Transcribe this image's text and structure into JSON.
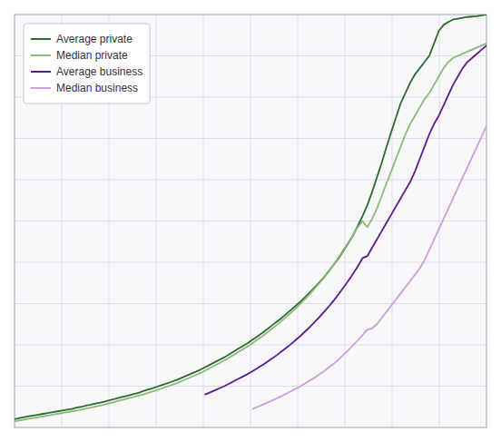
{
  "chart_data": {
    "type": "line",
    "x": [
      1,
      2,
      3,
      4,
      5,
      6,
      7,
      8,
      9,
      10,
      11,
      12,
      13,
      14,
      15,
      16,
      17,
      18,
      19,
      20,
      21,
      22,
      23,
      24,
      25,
      26,
      27,
      28,
      29,
      30,
      31,
      32,
      33,
      34,
      35,
      36,
      37,
      38,
      39,
      40,
      41,
      42,
      43,
      44,
      45,
      46,
      47,
      48,
      49,
      50,
      51,
      52,
      53,
      54,
      55,
      56,
      57,
      58,
      59,
      60,
      61,
      62,
      63,
      64,
      65,
      66,
      67,
      68,
      69,
      70,
      71,
      72,
      73,
      74,
      75,
      76,
      77,
      78,
      79,
      80,
      81,
      82,
      83,
      84,
      85,
      86,
      87,
      88,
      89,
      90,
      91,
      92,
      93,
      94,
      95,
      96,
      97,
      98,
      99,
      100
    ],
    "series": [
      {
        "name": "Average private",
        "color": "#2d6a2d",
        "values": [
          2.0,
          2.3,
          2.5,
          2.7,
          2.9,
          3.1,
          3.3,
          3.5,
          3.7,
          3.9,
          4.1,
          4.3,
          4.5,
          4.8,
          5.0,
          5.3,
          5.5,
          5.8,
          6.0,
          6.3,
          6.6,
          6.9,
          7.2,
          7.5,
          7.8,
          8.1,
          8.4,
          8.8,
          9.2,
          9.5,
          9.9,
          10.3,
          10.7,
          11.1,
          11.5,
          12.0,
          12.5,
          13.0,
          13.5,
          14.0,
          14.6,
          15.2,
          15.8,
          16.4,
          17.0,
          17.7,
          18.4,
          19.1,
          19.8,
          20.5,
          21.3,
          22.1,
          22.9,
          23.8,
          24.7,
          25.6,
          26.5,
          27.5,
          28.5,
          29.5,
          30.5,
          31.6,
          32.8,
          34.0,
          35.2,
          36.5,
          38.0,
          39.5,
          41.0,
          42.8,
          44.6,
          46.5,
          48.8,
          51.2,
          53.8,
          57.0,
          60.5,
          64.0,
          67.8,
          71.5,
          75.0,
          78.5,
          81.0,
          83.5,
          85.5,
          87.0,
          88.5,
          90.0,
          93.0,
          96.0,
          97.5,
          98.2,
          98.8,
          99.0,
          99.2,
          99.4,
          99.5,
          99.6,
          99.8,
          100.0
        ]
      },
      {
        "name": "Median private",
        "color": "#8db87a",
        "values": [
          1.5,
          1.7,
          1.9,
          2.1,
          2.3,
          2.5,
          2.7,
          2.9,
          3.1,
          3.3,
          3.5,
          3.7,
          3.9,
          4.1,
          4.3,
          4.6,
          4.8,
          5.1,
          5.3,
          5.6,
          5.9,
          6.2,
          6.5,
          6.8,
          7.1,
          7.4,
          7.7,
          8.0,
          8.4,
          8.7,
          9.1,
          9.5,
          9.9,
          10.3,
          10.7,
          11.2,
          11.7,
          12.2,
          12.7,
          13.2,
          13.8,
          14.4,
          15.0,
          15.6,
          16.2,
          16.9,
          17.6,
          18.3,
          19.0,
          19.7,
          20.5,
          21.3,
          22.1,
          23.0,
          23.9,
          24.8,
          25.8,
          26.8,
          27.8,
          28.9,
          30.0,
          31.2,
          32.4,
          33.7,
          35.0,
          36.4,
          37.9,
          39.5,
          41.2,
          43.0,
          44.8,
          46.6,
          48.5,
          50.0,
          48.5,
          50.5,
          53.0,
          56.0,
          59.0,
          62.0,
          65.0,
          68.0,
          71.0,
          73.5,
          75.5,
          77.5,
          79.5,
          81.0,
          83.0,
          85.0,
          87.0,
          88.5,
          89.5,
          90.0,
          90.5,
          91.0,
          91.5,
          92.0,
          92.5,
          93.0
        ]
      },
      {
        "name": "Average business",
        "color": "#5b1a8f",
        "values": [
          null,
          null,
          null,
          null,
          null,
          null,
          null,
          null,
          null,
          null,
          null,
          null,
          null,
          null,
          null,
          null,
          null,
          null,
          null,
          null,
          null,
          null,
          null,
          null,
          null,
          null,
          null,
          null,
          null,
          null,
          null,
          null,
          null,
          null,
          null,
          null,
          null,
          null,
          null,
          null,
          8.0,
          8.5,
          9.0,
          9.5,
          10.0,
          10.6,
          11.2,
          11.8,
          12.4,
          13.0,
          13.7,
          14.4,
          15.1,
          15.9,
          16.7,
          17.5,
          18.4,
          19.3,
          20.2,
          21.2,
          22.2,
          23.3,
          24.4,
          25.6,
          26.8,
          28.1,
          29.4,
          30.8,
          32.3,
          33.9,
          35.5,
          37.2,
          39.0,
          41.0,
          41.5,
          43.5,
          45.5,
          47.5,
          49.5,
          51.5,
          53.5,
          55.5,
          57.5,
          59.5,
          62.0,
          65.0,
          68.0,
          71.0,
          73.5,
          75.5,
          78.0,
          80.5,
          83.0,
          85.0,
          87.0,
          88.5,
          89.5,
          90.5,
          91.5,
          92.5
        ]
      },
      {
        "name": "Median business",
        "color": "#c9a0dc",
        "values": [
          null,
          null,
          null,
          null,
          null,
          null,
          null,
          null,
          null,
          null,
          null,
          null,
          null,
          null,
          null,
          null,
          null,
          null,
          null,
          null,
          null,
          null,
          null,
          null,
          null,
          null,
          null,
          null,
          null,
          null,
          null,
          null,
          null,
          null,
          null,
          null,
          null,
          null,
          null,
          null,
          null,
          null,
          null,
          null,
          null,
          null,
          null,
          null,
          null,
          null,
          4.5,
          5.0,
          5.5,
          6.0,
          6.5,
          7.0,
          7.6,
          8.2,
          8.8,
          9.4,
          10.0,
          10.7,
          11.4,
          12.1,
          12.9,
          13.7,
          14.6,
          15.5,
          16.5,
          17.6,
          18.7,
          19.9,
          21.1,
          22.4,
          23.7,
          24.0,
          25.0,
          26.5,
          28.0,
          29.5,
          31.0,
          32.5,
          34.0,
          35.5,
          37.0,
          38.5,
          40.5,
          43.0,
          45.5,
          48.0,
          50.5,
          53.0,
          55.5,
          58.0,
          60.5,
          63.0,
          65.5,
          68.0,
          70.5,
          73.0
        ]
      }
    ],
    "xlim": [
      1,
      100
    ],
    "xticks": [
      1,
      10.9,
      20.8,
      30.7,
      40.6,
      50.5,
      60.4,
      70.3,
      80.2,
      90.1,
      100
    ],
    "ylim": [
      0,
      100
    ],
    "yticks": [
      0,
      10,
      20,
      30,
      40,
      50,
      60,
      70,
      80,
      90,
      100
    ],
    "grid": true,
    "tick_labels": false,
    "legend": "upper left"
  }
}
